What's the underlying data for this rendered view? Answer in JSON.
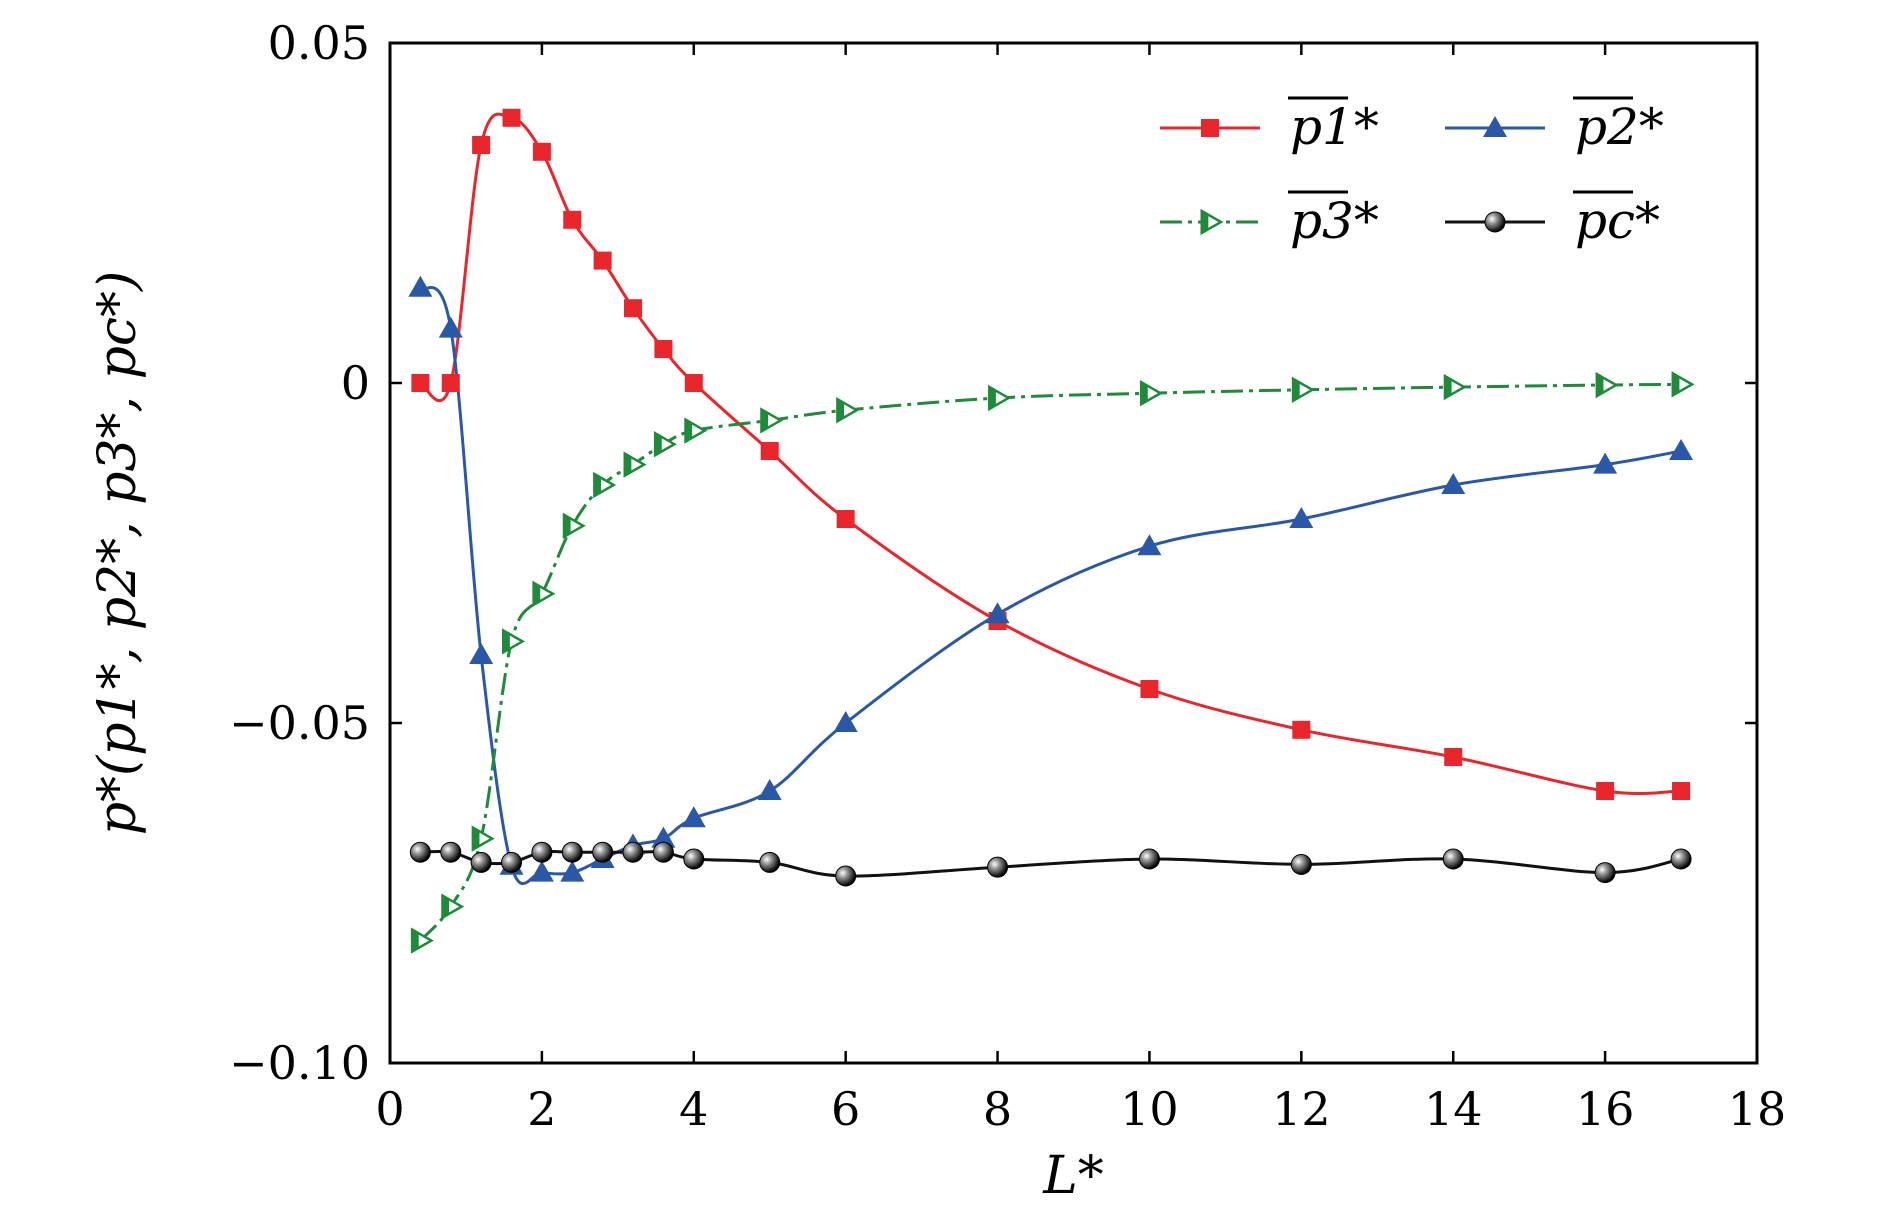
{
  "chart_data": {
    "type": "line",
    "title": "",
    "xlabel": "L*",
    "ylabel": "p*(p1*, p2*, p3*, pc*)",
    "xlim": [
      0,
      18
    ],
    "ylim": [
      -0.1,
      0.05
    ],
    "xticks": [
      0,
      2,
      4,
      6,
      8,
      10,
      12,
      14,
      16,
      18
    ],
    "yticks": [
      0.05,
      0,
      -0.05,
      -0.1
    ],
    "xtick_labels": [
      "0",
      "2",
      "4",
      "6",
      "8",
      "10",
      "12",
      "14",
      "16",
      "18"
    ],
    "ytick_labels": [
      "0.05",
      "0",
      "−0.05",
      "−0.10"
    ],
    "grid": false,
    "legend_position": "top-right",
    "series": [
      {
        "name": "p1*",
        "color": "#e8262c",
        "marker": "square",
        "dash": "solid",
        "x": [
          0.4,
          0.8,
          1.2,
          1.6,
          2.0,
          2.4,
          2.8,
          3.2,
          3.6,
          4.0,
          5.0,
          6.0,
          8.0,
          10.0,
          12.0,
          14.0,
          16.0,
          17.0
        ],
        "y": [
          0.0,
          0.0,
          0.035,
          0.039,
          0.034,
          0.024,
          0.018,
          0.011,
          0.005,
          0.0,
          -0.01,
          -0.02,
          -0.035,
          -0.045,
          -0.051,
          -0.055,
          -0.06,
          -0.06
        ]
      },
      {
        "name": "p2*",
        "color": "#2a58a8",
        "marker": "triangle",
        "dash": "solid",
        "x": [
          0.4,
          0.8,
          1.2,
          1.6,
          2.0,
          2.4,
          2.8,
          3.2,
          3.6,
          4.0,
          5.0,
          6.0,
          8.0,
          10.0,
          12.0,
          14.0,
          16.0,
          17.0
        ],
        "y": [
          0.014,
          0.008,
          -0.04,
          -0.071,
          -0.072,
          -0.072,
          -0.07,
          -0.068,
          -0.067,
          -0.064,
          -0.06,
          -0.05,
          -0.034,
          -0.024,
          -0.02,
          -0.015,
          -0.012,
          -0.01
        ]
      },
      {
        "name": "p3*",
        "color": "#1e8a3a",
        "marker": "triangle-right-open",
        "dash": "dashed",
        "x": [
          0.4,
          0.8,
          1.2,
          1.6,
          2.0,
          2.4,
          2.8,
          3.2,
          3.6,
          4.0,
          5.0,
          6.0,
          8.0,
          10.0,
          12.0,
          14.0,
          16.0,
          17.0
        ],
        "y": [
          -0.082,
          -0.077,
          -0.067,
          -0.038,
          -0.031,
          -0.021,
          -0.015,
          -0.012,
          -0.009,
          -0.007,
          -0.0055,
          -0.004,
          -0.0022,
          -0.0015,
          -0.001,
          -0.0006,
          -0.0003,
          -0.0002
        ]
      },
      {
        "name": "pc*",
        "color": "#111111",
        "marker": "sphere",
        "dash": "solid",
        "x": [
          0.4,
          0.8,
          1.2,
          1.6,
          2.0,
          2.4,
          2.8,
          3.2,
          3.6,
          4.0,
          5.0,
          6.0,
          8.0,
          10.0,
          12.0,
          14.0,
          16.0,
          17.0
        ],
        "y": [
          -0.069,
          -0.069,
          -0.0705,
          -0.0705,
          -0.069,
          -0.069,
          -0.069,
          -0.069,
          -0.069,
          -0.07,
          -0.0705,
          -0.0725,
          -0.0712,
          -0.07,
          -0.0708,
          -0.07,
          -0.072,
          -0.07
        ]
      }
    ],
    "legend": [
      {
        "series_index": 0,
        "label": "p1*"
      },
      {
        "series_index": 1,
        "label": "p2*"
      },
      {
        "series_index": 2,
        "label": "p3*"
      },
      {
        "series_index": 3,
        "label": "pc*"
      }
    ]
  }
}
